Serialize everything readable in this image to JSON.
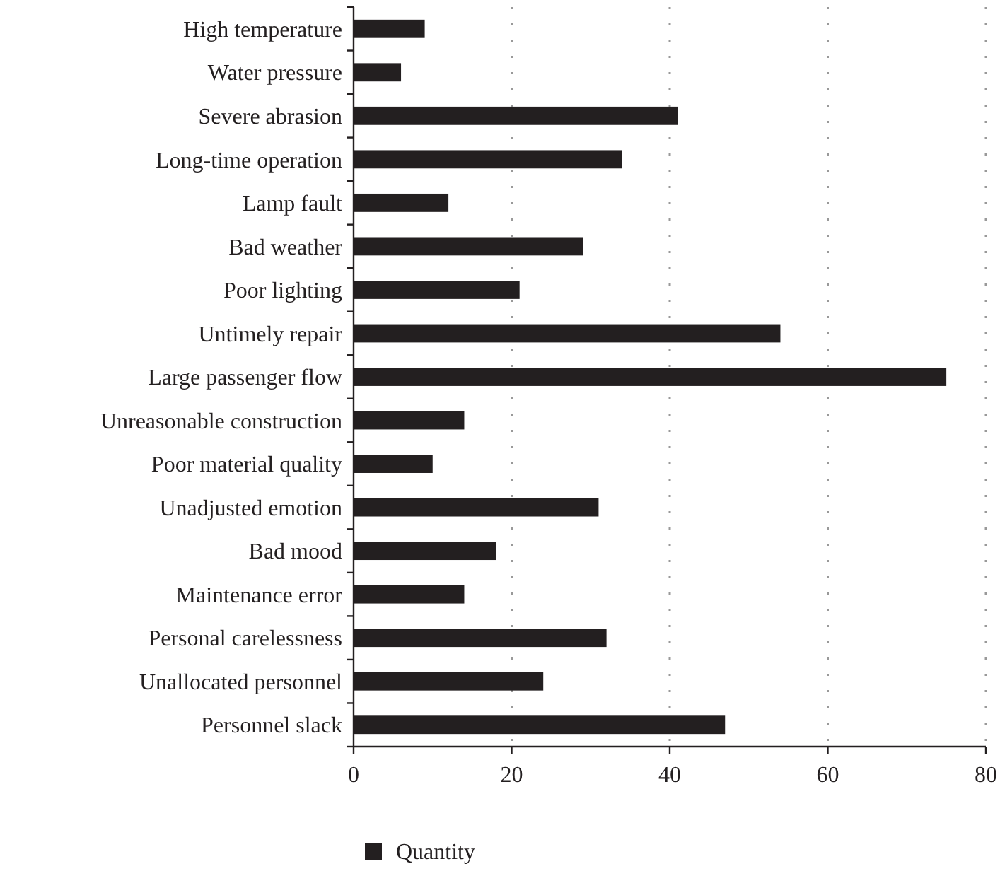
{
  "chart_data": {
    "type": "bar",
    "orientation": "horizontal",
    "categories": [
      "High temperature",
      "Water pressure",
      "Severe abrasion",
      "Long-time operation",
      "Lamp fault",
      "Bad weather",
      "Poor lighting",
      "Untimely repair",
      "Large passenger flow",
      "Unreasonable construction",
      "Poor material quality",
      "Unadjusted emotion",
      "Bad mood",
      "Maintenance error",
      "Personal carelessness",
      "Unallocated personnel",
      "Personnel slack"
    ],
    "series": [
      {
        "name": "Quantity",
        "color": "#231f20",
        "values": [
          9,
          6,
          41,
          34,
          12,
          29,
          21,
          54,
          75,
          14,
          10,
          31,
          18,
          14,
          32,
          24,
          47
        ]
      }
    ],
    "xlim": [
      0,
      80
    ],
    "xticks": [
      0,
      20,
      40,
      60,
      80
    ],
    "grid": "x",
    "legend": "bottom"
  }
}
